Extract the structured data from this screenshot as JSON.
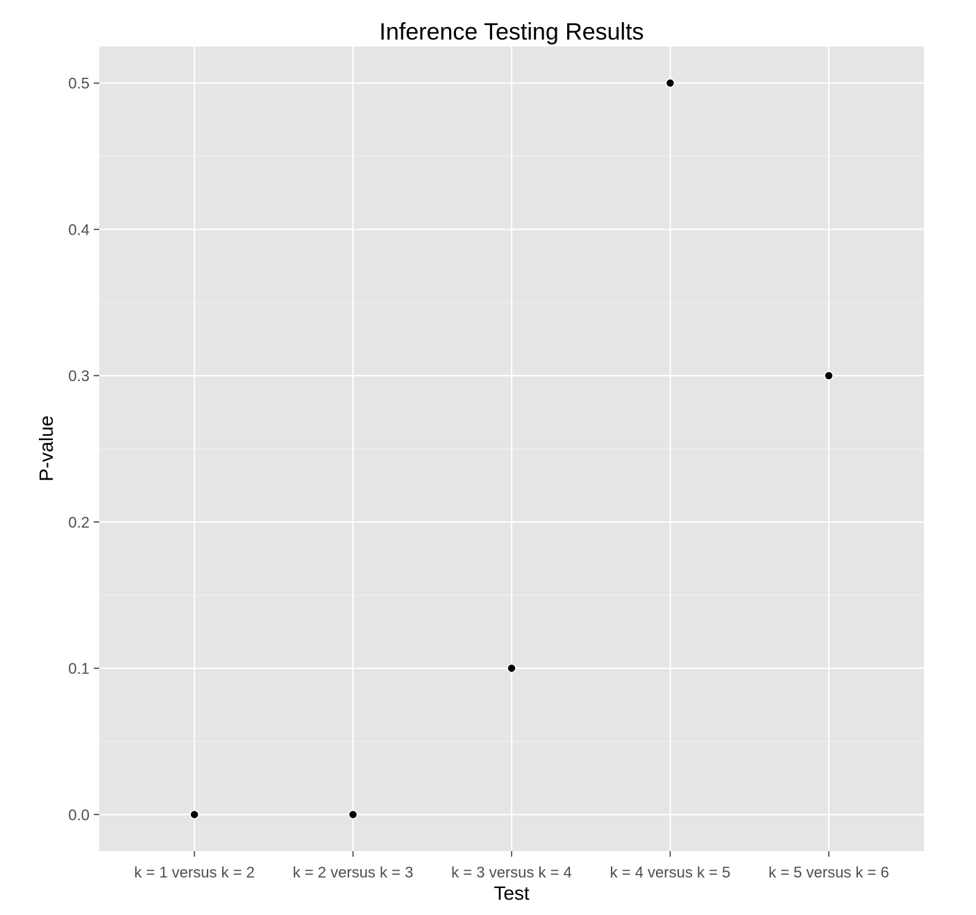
{
  "chart_data": {
    "type": "scatter",
    "title": "Inference Testing Results",
    "xlabel": "Test",
    "ylabel": "P-value",
    "categories": [
      "k = 1 versus k = 2",
      "k = 2 versus k = 3",
      "k = 3 versus k = 4",
      "k = 4 versus k = 5",
      "k = 5 versus k = 6"
    ],
    "values": [
      0.0,
      0.0,
      0.1,
      0.5,
      0.3
    ],
    "ylim": [
      -0.025,
      0.525
    ],
    "yticks": [
      0.0,
      0.1,
      0.2,
      0.3,
      0.4,
      0.5
    ],
    "ytick_labels": [
      "0.0",
      "0.1",
      "0.2",
      "0.3",
      "0.4",
      "0.5"
    ],
    "grid": true,
    "colors": {
      "panel": "#e5e5e5",
      "grid": "#ffffff",
      "point": "#000000"
    }
  }
}
